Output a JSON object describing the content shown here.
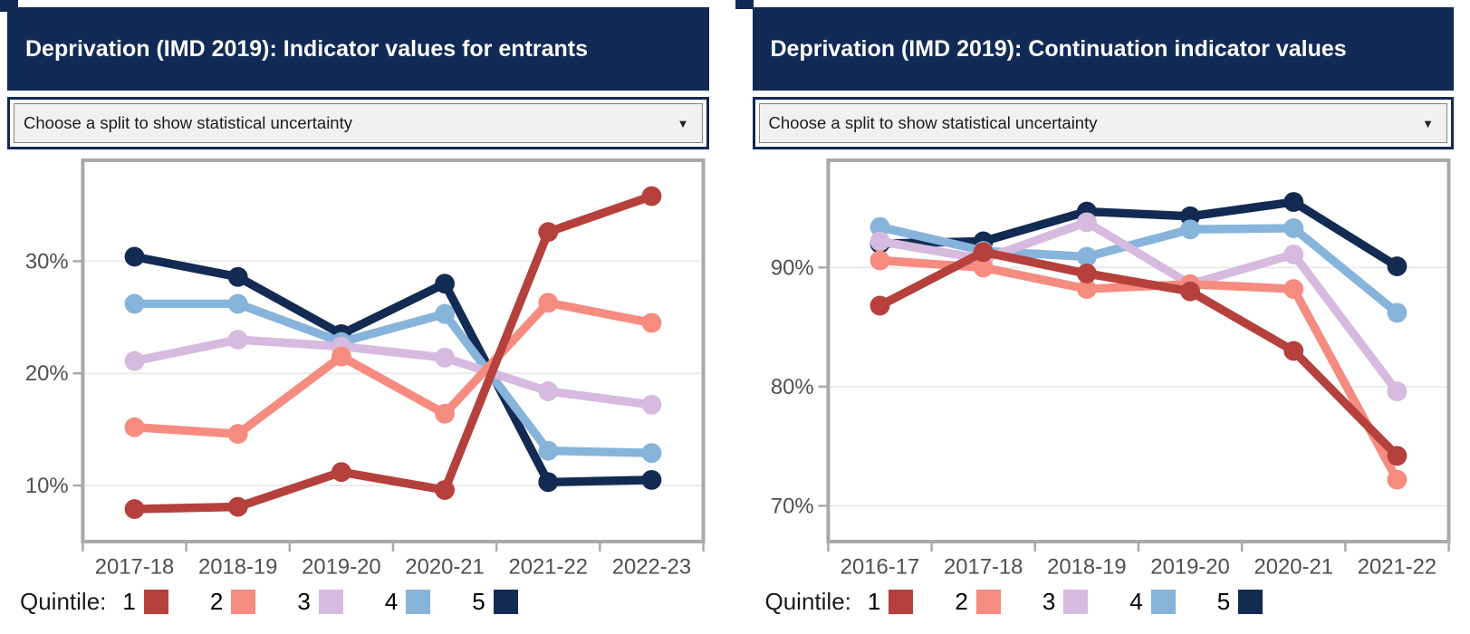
{
  "panels": [
    {
      "title": "Deprivation (IMD 2019): Indicator values for entrants",
      "dropdown": {
        "value": "Choose a split to show statistical uncertainty"
      }
    },
    {
      "title": "Deprivation (IMD 2019): Continuation indicator values",
      "dropdown": {
        "value": "Choose a split to show statistical uncertainty"
      }
    }
  ],
  "legend": {
    "label": "Quintile:",
    "items": [
      {
        "label": "1",
        "color": "#b5403c"
      },
      {
        "label": "2",
        "color": "#f68b80"
      },
      {
        "label": "3",
        "color": "#d6badf"
      },
      {
        "label": "4",
        "color": "#86b4da"
      },
      {
        "label": "5",
        "color": "#132a52"
      }
    ]
  },
  "colors": {
    "header_navy": "#112a55",
    "quintile1": "#b5403c",
    "quintile2": "#f68b80",
    "quintile3": "#d6badf",
    "quintile4": "#86b4da",
    "quintile5": "#132a52",
    "axis_text": "#4f4f4f",
    "plot_border": "#a9a9a9",
    "gridline": "#ebebeb"
  },
  "chart_data": [
    {
      "type": "line",
      "title": "Deprivation (IMD 2019): Indicator values for entrants",
      "categories": [
        "2017-18",
        "2018-19",
        "2019-20",
        "2020-21",
        "2021-22",
        "2022-23"
      ],
      "series": [
        {
          "name": "Quintile 1",
          "color": "#b5403c",
          "values": [
            7.9,
            8.1,
            11.2,
            9.6,
            32.6,
            35.8
          ]
        },
        {
          "name": "Quintile 2",
          "color": "#f68b80",
          "values": [
            15.2,
            14.6,
            21.5,
            16.4,
            26.3,
            24.5
          ]
        },
        {
          "name": "Quintile 3",
          "color": "#d6badf",
          "values": [
            21.1,
            23.0,
            22.4,
            21.4,
            18.4,
            17.2
          ]
        },
        {
          "name": "Quintile 4",
          "color": "#86b4da",
          "values": [
            26.2,
            26.2,
            22.8,
            25.3,
            13.1,
            12.9
          ]
        },
        {
          "name": "Quintile 5",
          "color": "#132a52",
          "values": [
            30.4,
            28.6,
            23.5,
            28.0,
            10.3,
            10.5
          ]
        }
      ],
      "xlabel": "",
      "ylabel": "",
      "ylim": [
        5,
        39
      ],
      "yticks": [
        10,
        20,
        30
      ],
      "ytick_labels": [
        "10%",
        "20%",
        "30%"
      ],
      "grid": true,
      "legend_position": "bottom"
    },
    {
      "type": "line",
      "title": "Deprivation (IMD 2019): Continuation indicator values",
      "categories": [
        "2016-17",
        "2017-18",
        "2018-19",
        "2019-20",
        "2020-21",
        "2021-22"
      ],
      "series": [
        {
          "name": "Quintile 1",
          "color": "#b5403c",
          "values": [
            86.8,
            91.3,
            89.5,
            88.0,
            83.0,
            74.2
          ]
        },
        {
          "name": "Quintile 2",
          "color": "#f68b80",
          "values": [
            90.6,
            90.0,
            88.2,
            88.6,
            88.2,
            72.2
          ]
        },
        {
          "name": "Quintile 3",
          "color": "#d6badf",
          "values": [
            92.2,
            90.7,
            93.8,
            88.6,
            91.1,
            79.6
          ]
        },
        {
          "name": "Quintile 4",
          "color": "#86b4da",
          "values": [
            93.4,
            91.4,
            90.9,
            93.2,
            93.3,
            86.2
          ]
        },
        {
          "name": "Quintile 5",
          "color": "#132a52",
          "values": [
            92.0,
            92.2,
            94.7,
            94.3,
            95.5,
            90.1
          ]
        }
      ],
      "xlabel": "",
      "ylabel": "",
      "ylim": [
        67,
        99
      ],
      "yticks": [
        70,
        80,
        90
      ],
      "ytick_labels": [
        "70%",
        "80%",
        "90%"
      ],
      "grid": true,
      "legend_position": "bottom"
    }
  ]
}
